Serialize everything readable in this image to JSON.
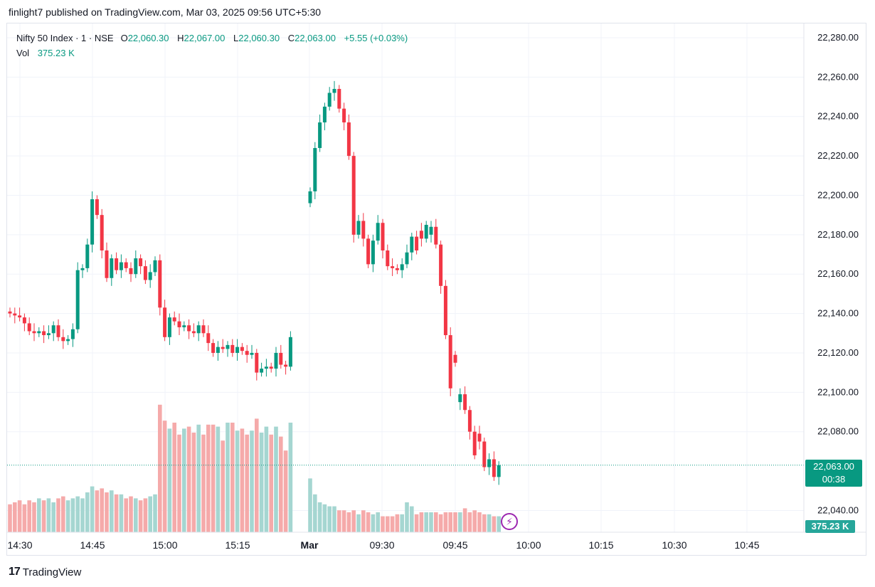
{
  "header": {
    "publisher": "finlight7 published on TradingView.com, Mar 03, 2025 09:56 UTC+5:30"
  },
  "legend": {
    "symbol": "Nifty 50 Index · 1 · NSE",
    "open_label": "O",
    "open": "22,060.30",
    "high_label": "H",
    "high": "22,067.00",
    "low_label": "L",
    "low": "22,060.30",
    "close_label": "C",
    "close": "22,063.00",
    "change": "+5.55 (+0.03%)",
    "vol_label": "Vol",
    "vol": "375.23 K"
  },
  "price_tag": {
    "price": "22,063.00",
    "countdown": "00:38"
  },
  "vol_tag": "375.23 K",
  "footer": {
    "logo_mark": "17",
    "logo_text": "TradingView"
  },
  "colors": {
    "up": "#089981",
    "down": "#f23645",
    "vol_up": "#a5d6d1",
    "vol_down": "#f5aaaa",
    "grid": "#f0f3fa"
  },
  "chart_data": {
    "type": "candlestick",
    "y_ticks": [
      "22,280.00",
      "22,260.00",
      "22,240.00",
      "22,220.00",
      "22,200.00",
      "22,180.00",
      "22,160.00",
      "22,140.00",
      "22,120.00",
      "22,100.00",
      "22,080.00",
      "22,040.00"
    ],
    "y_tick_values": [
      22280,
      22260,
      22240,
      22220,
      22200,
      22180,
      22160,
      22140,
      22120,
      22100,
      22080,
      22040
    ],
    "x_ticks": [
      "14:30",
      "14:45",
      "15:00",
      "15:15",
      "Mar",
      "09:30",
      "09:45",
      "10:00",
      "10:15",
      "10:30",
      "10:45"
    ],
    "current_price": 22063,
    "session1_closes": [
      22140,
      22139,
      22138,
      22135,
      22131,
      22130,
      22131,
      22129,
      22130,
      22134,
      22128,
      22126,
      22127,
      22132,
      22162,
      22163,
      22175,
      22198,
      22190,
      22172,
      22158,
      22168,
      22162,
      22166,
      22163,
      22160,
      22168,
      22164,
      22157,
      22161,
      22167,
      22143,
      22128,
      22138,
      22136,
      22133,
      22134,
      22131,
      22130,
      22134,
      22130,
      22125,
      22120,
      22123,
      22122,
      22124,
      22120,
      22123,
      22121,
      22119,
      22120,
      22110,
      22112,
      22113,
      22112,
      22120,
      22114,
      22113,
      22128
    ],
    "session2_closes": [
      22202,
      22224,
      22237,
      22245,
      22252,
      22254,
      22244,
      22237,
      22220,
      22180,
      22187,
      22178,
      22165,
      22177,
      22186,
      22172,
      22164,
      22163,
      22162,
      22165,
      22171,
      22179,
      22172,
      22178,
      22185,
      22184,
      22175,
      22154,
      22129,
      22102,
      22115,
      22099,
      22091,
      22080,
      22068,
      22075,
      22062,
      22066,
      22057,
      22063
    ],
    "session1_volumes_k": [
      14,
      15,
      16,
      14,
      16,
      15,
      17,
      16,
      17,
      15,
      17,
      18,
      16,
      17,
      18,
      17,
      20,
      23,
      21,
      22,
      20,
      21,
      19,
      19,
      17,
      18,
      17,
      16,
      17,
      18,
      19,
      64,
      56,
      52,
      55,
      49,
      52,
      53,
      50,
      54,
      49,
      54,
      54,
      53,
      46,
      55,
      55,
      51,
      52,
      49,
      51,
      57,
      50,
      53,
      49,
      53,
      48,
      41,
      55
    ],
    "session2_volumes_k": [
      27,
      19,
      15,
      14,
      13,
      13,
      11,
      11,
      10,
      11,
      9,
      11,
      10,
      9,
      10,
      8,
      8,
      8,
      9,
      9,
      15,
      13,
      9,
      10,
      10,
      10,
      10,
      9,
      10,
      10,
      10,
      10,
      12,
      10,
      11,
      10,
      9,
      9,
      8,
      8
    ],
    "session2_directions": "uuuuuuddddudduudddduuudduudddddudddddudu"
  }
}
